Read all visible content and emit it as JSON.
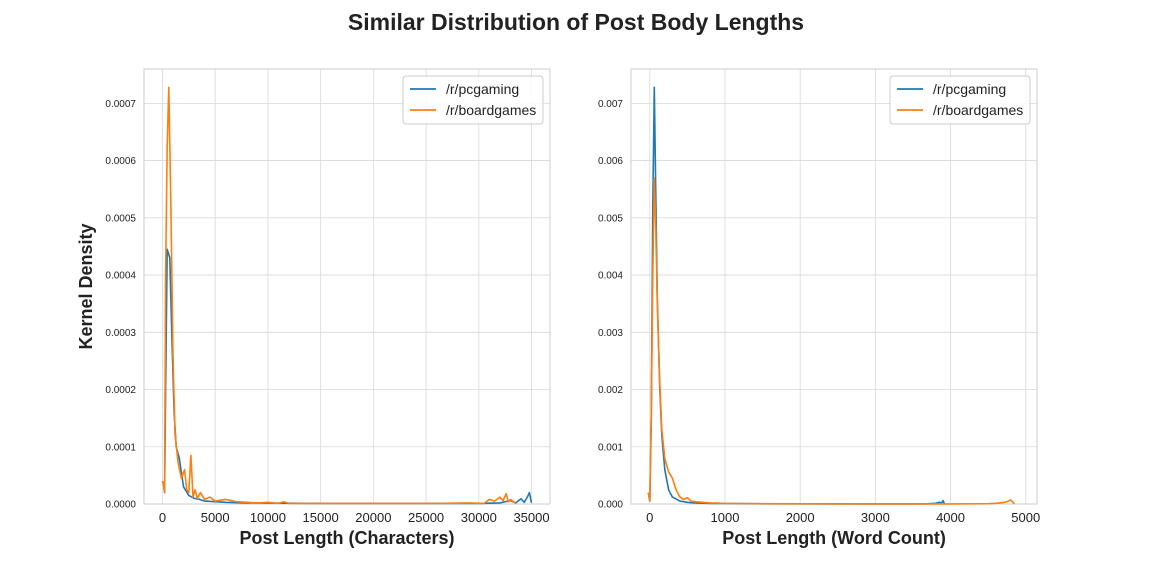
{
  "figure": {
    "suptitle": "Similar Distribution of Post Body Lengths",
    "colors": {
      "pcgaming": "#1f77b4",
      "boardgames": "#ff7f0e",
      "grid": "#d9d9d9",
      "spine": "#cccccc",
      "text": "#222222"
    }
  },
  "chart_data": [
    {
      "type": "line",
      "title": "",
      "xlabel": "Post Length (Characters)",
      "ylabel": "Kernel Density",
      "xlim": [
        -1750,
        36750
      ],
      "ylim": [
        0,
        0.00076
      ],
      "xticks": [
        0,
        5000,
        10000,
        15000,
        20000,
        25000,
        30000,
        35000
      ],
      "xtick_labels": [
        "0",
        "5000",
        "10000",
        "15000",
        "20000",
        "25000",
        "30000",
        "35000"
      ],
      "yticks": [
        0,
        0.0001,
        0.0002,
        0.0003,
        0.0004,
        0.0005,
        0.0006,
        0.0007
      ],
      "ytick_labels": [
        "0.0000",
        "0.0001",
        "0.0002",
        "0.0003",
        "0.0004",
        "0.0005",
        "0.0006",
        "0.0007"
      ],
      "grid": true,
      "legend": "top-right",
      "series": [
        {
          "name": "/r/pcgaming",
          "color": "#1f77b4",
          "x": [
            0,
            100,
            200,
            300,
            450,
            700,
            900,
            1100,
            1300,
            1600,
            2000,
            2500,
            3000,
            3500,
            4000,
            5000,
            6000,
            8000,
            10000,
            15000,
            20000,
            25000,
            30000,
            32000,
            33000,
            33500,
            34000,
            34300,
            34600,
            34800,
            35000
          ],
          "y": [
            4e-05,
            3.5e-05,
            2e-05,
            0.0002,
            0.000445,
            0.00043,
            0.00029,
            0.00016,
            0.0001,
            8e-05,
            3e-05,
            1.5e-05,
            1e-05,
            8e-06,
            5e-06,
            4e-06,
            3e-06,
            2e-06,
            1.5e-06,
            1e-06,
            1e-06,
            1e-06,
            1e-06,
            2e-06,
            6e-06,
            2e-06,
            9e-06,
            3e-06,
            1.2e-05,
            2e-05,
            2e-06
          ]
        },
        {
          "name": "/r/boardgames",
          "color": "#ff7f0e",
          "x": [
            0,
            100,
            200,
            300,
            450,
            600,
            800,
            1000,
            1200,
            1500,
            1800,
            2100,
            2300,
            2500,
            2700,
            2900,
            3100,
            3300,
            3600,
            4000,
            4500,
            5000,
            6000,
            7000,
            8000,
            9000,
            10000,
            11000,
            11500,
            12000,
            14000,
            18000,
            22000,
            26000,
            29000,
            30500,
            31000,
            31500,
            32000,
            32300,
            32600,
            32800,
            33000,
            33500
          ],
          "y": [
            4e-05,
            3.5e-05,
            2e-05,
            0.0004,
            0.000625,
            0.000728,
            0.00052,
            0.00026,
            0.00012,
            7e-05,
            4.5e-05,
            6e-05,
            2.5e-05,
            2e-05,
            8.5e-05,
            1.2e-05,
            2.5e-05,
            1e-05,
            2e-05,
            8e-06,
            1.2e-05,
            5e-06,
            8e-06,
            4e-06,
            3e-06,
            2e-06,
            3e-06,
            1e-06,
            4e-06,
            1e-06,
            1e-06,
            1e-06,
            1e-06,
            1e-06,
            2e-06,
            1e-06,
            8e-06,
            5e-06,
            1.2e-05,
            6e-06,
            1.8e-05,
            4e-06,
            8e-06,
            1e-06
          ]
        }
      ]
    },
    {
      "type": "line",
      "title": "",
      "xlabel": "Post Length (Word Count)",
      "ylabel": "",
      "xlim": [
        -250,
        5150
      ],
      "ylim": [
        0,
        0.0076
      ],
      "xticks": [
        0,
        1000,
        2000,
        3000,
        4000,
        5000
      ],
      "xtick_labels": [
        "0",
        "1000",
        "2000",
        "3000",
        "4000",
        "5000"
      ],
      "yticks": [
        0,
        0.001,
        0.002,
        0.003,
        0.004,
        0.005,
        0.006,
        0.007
      ],
      "ytick_labels": [
        "0.000",
        "0.001",
        "0.002",
        "0.003",
        "0.004",
        "0.005",
        "0.006",
        "0.007"
      ],
      "grid": true,
      "legend": "top-right",
      "series": [
        {
          "name": "/r/pcgaming",
          "color": "#1f77b4",
          "x": [
            -20,
            0,
            20,
            40,
            60,
            80,
            100,
            130,
            160,
            200,
            250,
            300,
            400,
            500,
            600,
            800,
            1000,
            1500,
            2000,
            3000,
            3500,
            3700,
            3800,
            3850,
            3880,
            3900,
            3920
          ],
          "y": [
            0.0002,
            5e-05,
            0.0015,
            0.0052,
            0.00728,
            0.0054,
            0.0036,
            0.0021,
            0.0012,
            0.0006,
            0.00025,
            0.00012,
            5e-05,
            3e-05,
            2e-05,
            1e-05,
            8e-06,
            4e-06,
            3e-06,
            2e-06,
            2e-06,
            3e-06,
            1.2e-05,
            3e-05,
            1.5e-05,
            6e-05,
            2e-06
          ]
        },
        {
          "name": "/r/boardgames",
          "color": "#ff7f0e",
          "x": [
            -20,
            0,
            20,
            40,
            60,
            80,
            100,
            130,
            160,
            200,
            250,
            300,
            350,
            400,
            450,
            500,
            550,
            600,
            700,
            800,
            900,
            1000,
            1200,
            1500,
            2000,
            3000,
            4000,
            4500,
            4600,
            4700,
            4750,
            4800,
            4850
          ],
          "y": [
            0.0002,
            5e-05,
            0.0016,
            0.004,
            0.0057,
            0.0048,
            0.0035,
            0.0022,
            0.0013,
            0.0008,
            0.00056,
            0.00045,
            0.00025,
            0.00012,
            8e-05,
            0.00011,
            5e-05,
            4e-05,
            3e-05,
            2e-05,
            1.5e-05,
            1e-05,
            8e-06,
            5e-06,
            3e-06,
            2e-06,
            2e-06,
            5e-06,
            1.2e-05,
            2.5e-05,
            4e-05,
            7e-05,
            5e-06
          ]
        }
      ]
    }
  ]
}
